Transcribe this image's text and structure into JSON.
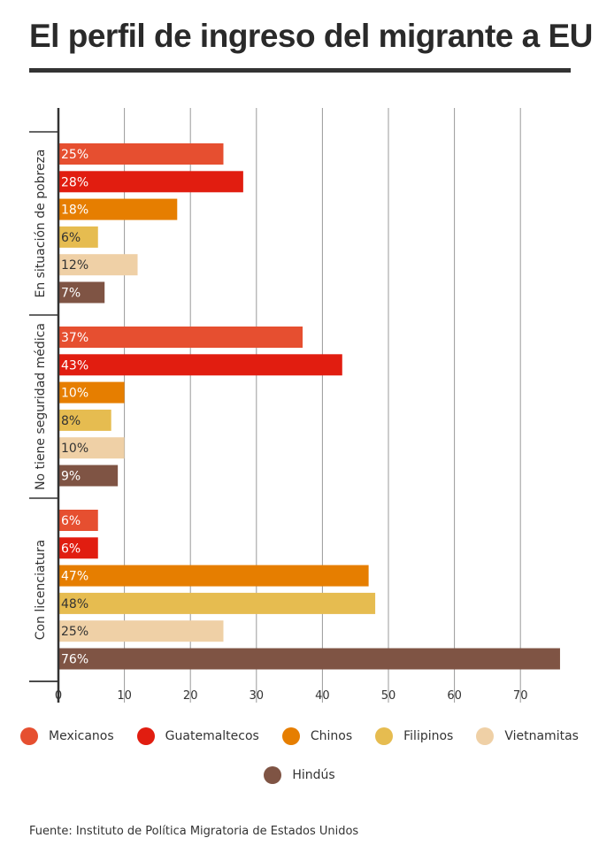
{
  "title": "El perfil de ingreso del migrante a EU",
  "source": "Fuente: Instituto de Política Migratoria de Estados Unidos",
  "colors": {
    "Mexicanos": "#e64f30",
    "Guatemaltecos": "#e11d10",
    "Chinos": "#e67e00",
    "Filipinos": "#e6bc50",
    "Vietnamitas": "#efd0a6",
    "Hindús": "#7f5444"
  },
  "chart_data": {
    "type": "bar",
    "orientation": "horizontal",
    "categories": [
      "En situación de pobreza",
      "No tiene seguridad médica",
      "Con licenciatura"
    ],
    "series": [
      {
        "name": "Mexicanos",
        "values": [
          25,
          37,
          6
        ],
        "labels": [
          "25%",
          "37%",
          "6%"
        ]
      },
      {
        "name": "Guatemaltecos",
        "values": [
          28,
          43,
          6
        ],
        "labels": [
          "28%",
          "43%",
          "6%"
        ]
      },
      {
        "name": "Chinos",
        "values": [
          18,
          10,
          47
        ],
        "labels": [
          "18%",
          "10%",
          "47%"
        ]
      },
      {
        "name": "Filipinos",
        "values": [
          6,
          8,
          48
        ],
        "labels": [
          "6%",
          "8%",
          "48%"
        ]
      },
      {
        "name": "Vietnamitas",
        "values": [
          12,
          10,
          25
        ],
        "labels": [
          "12%",
          "10%",
          "25%"
        ]
      },
      {
        "name": "Hindús",
        "values": [
          7,
          9,
          76
        ],
        "labels": [
          "7%",
          "9%",
          "76%"
        ]
      }
    ],
    "xticks": [
      "0",
      "10",
      "20",
      "30",
      "40",
      "50",
      "60",
      "70"
    ],
    "xlim": [
      0,
      77
    ],
    "grid": true,
    "legend": "bottom"
  }
}
